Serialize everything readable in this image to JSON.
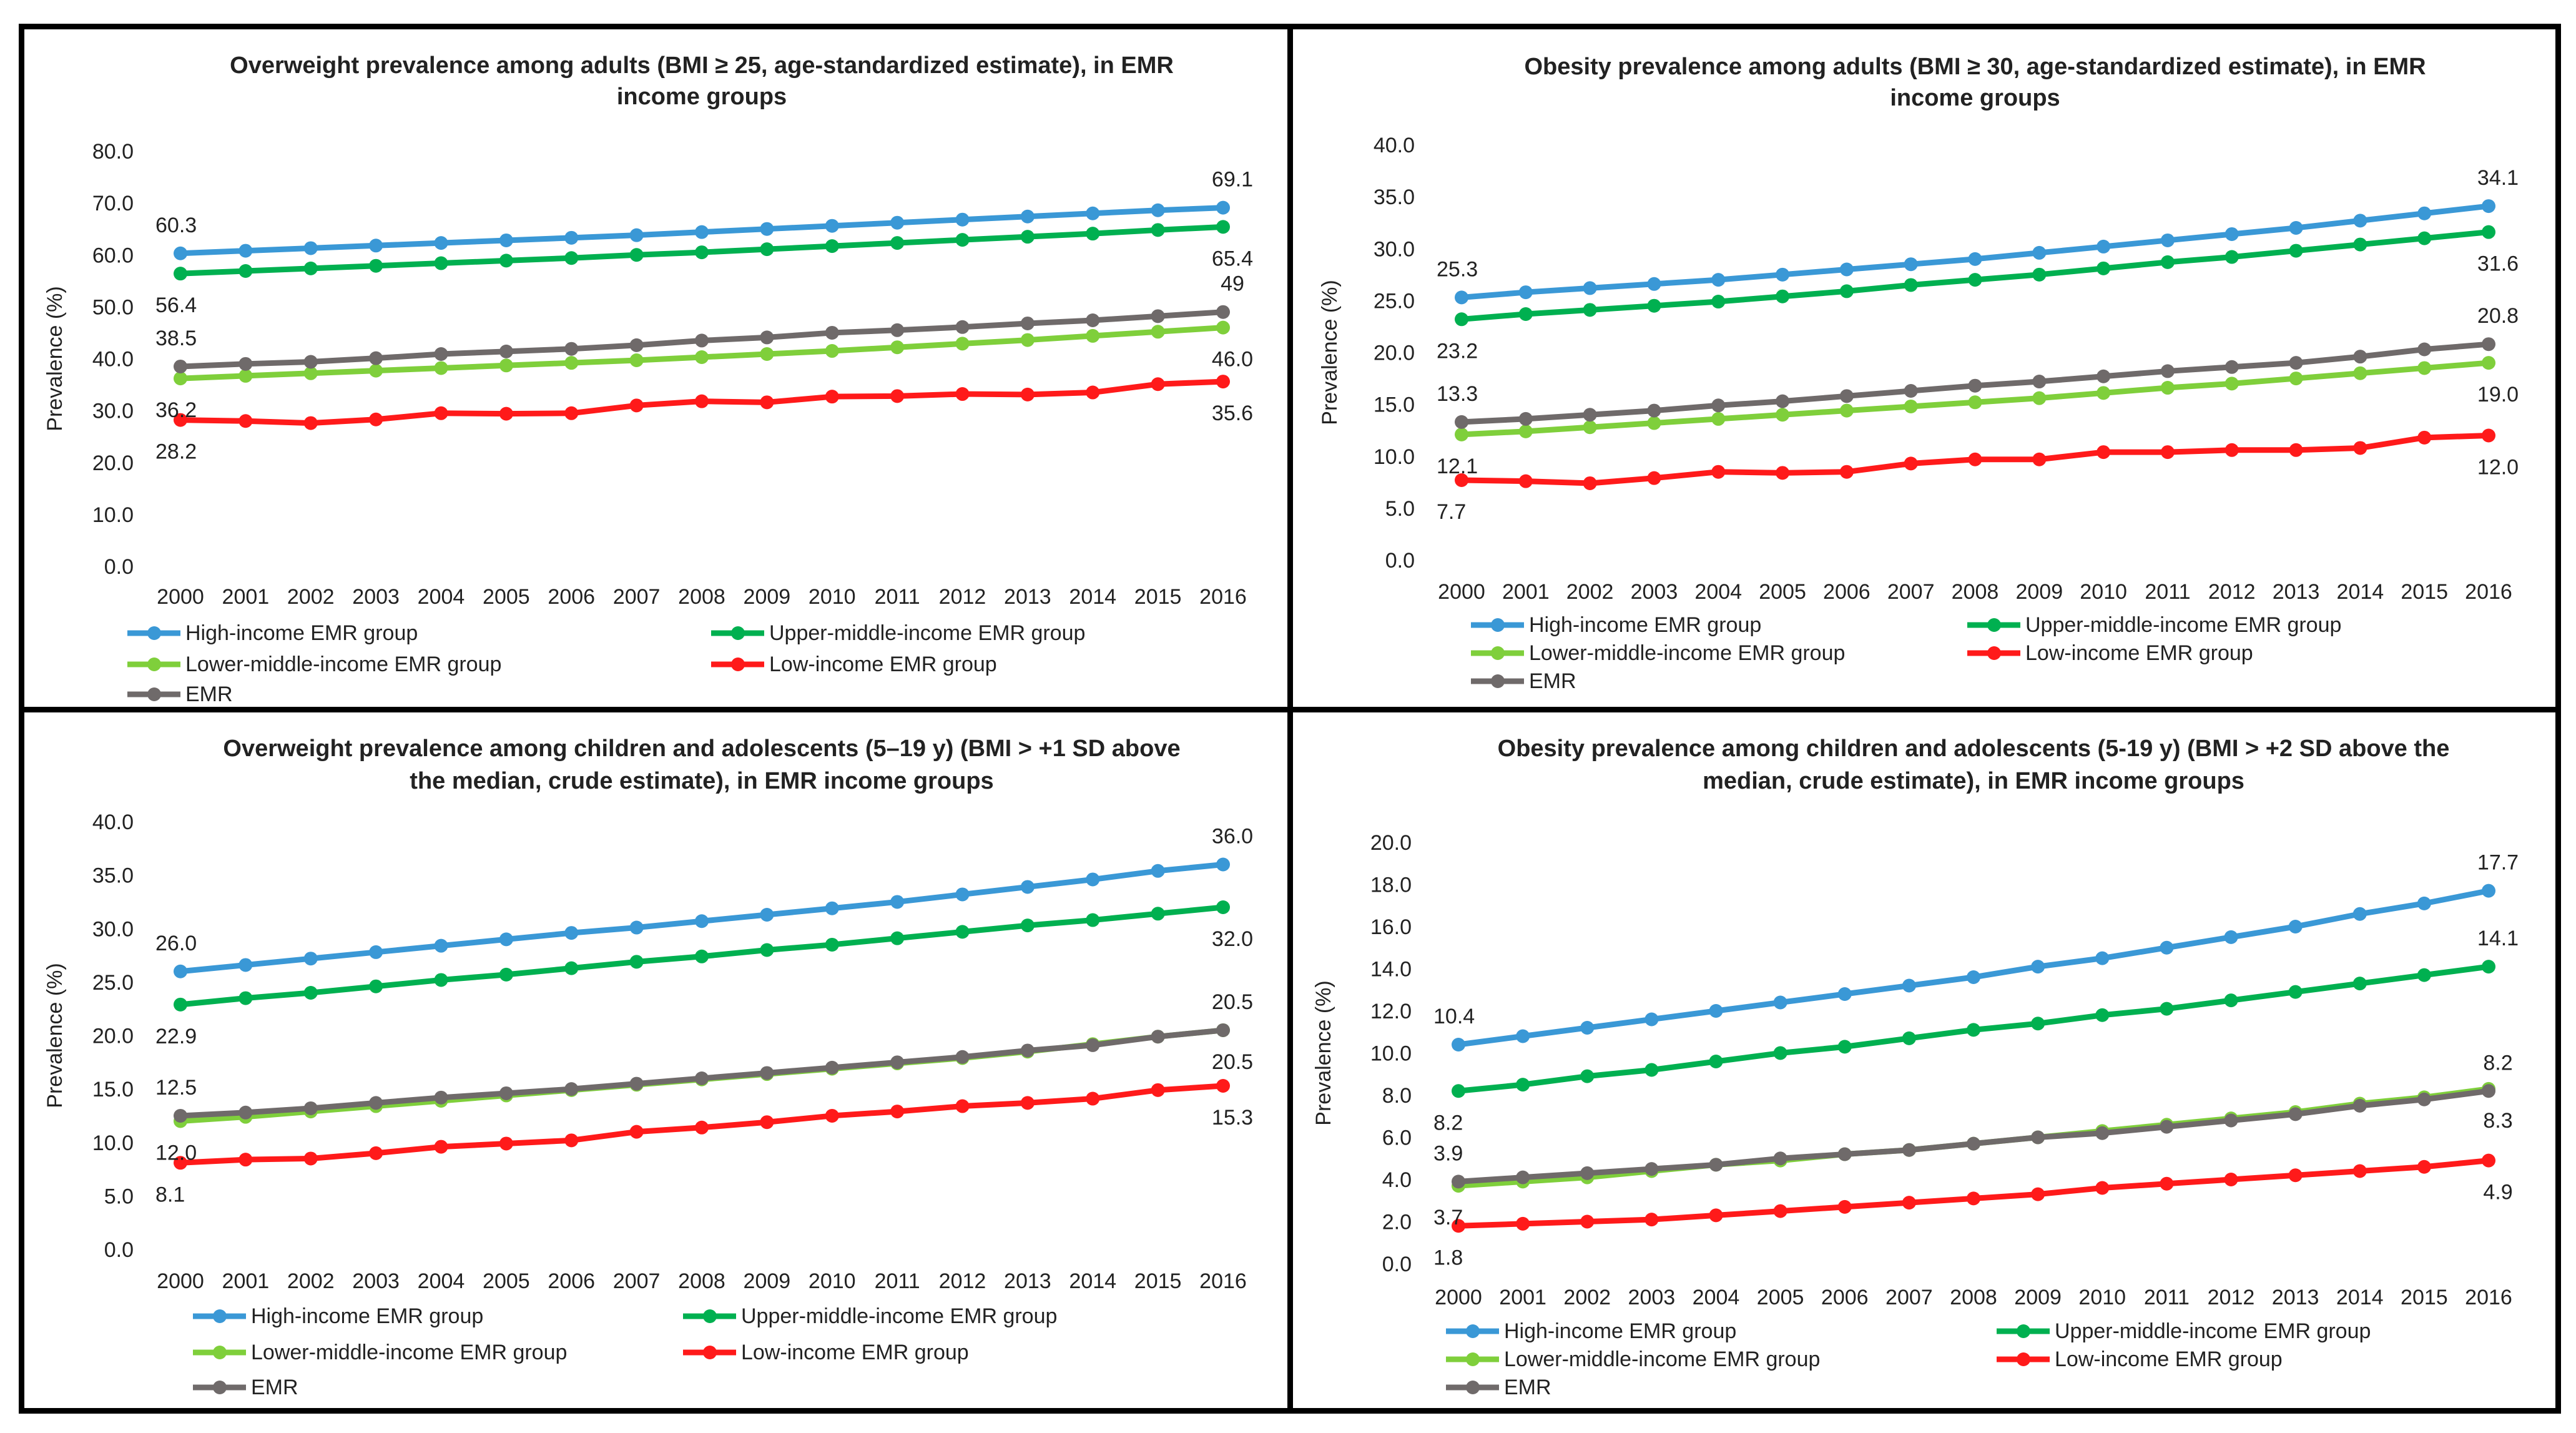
{
  "chart_data": [
    {
      "type": "line",
      "title_lines": [
        "Overweight prevalence among adults (BMI ≥ 25, age-standardized estimate), in EMR",
        "income groups"
      ],
      "ylabel": "Prevalence (%)",
      "ylim": [
        0,
        80
      ],
      "ytick_labels": [
        "0.0",
        "10.0",
        "20.0",
        "30.0",
        "40.0",
        "50.0",
        "60.0",
        "70.0",
        "80.0"
      ],
      "categories": [
        "2000",
        "2001",
        "2002",
        "2003",
        "2004",
        "2005",
        "2006",
        "2007",
        "2008",
        "2009",
        "2010",
        "2011",
        "2012",
        "2013",
        "2014",
        "2015",
        "2016"
      ],
      "series": [
        {
          "name": "High-income EMR group",
          "color": "#3a98d6",
          "values": [
            60.3,
            60.8,
            61.3,
            61.8,
            62.3,
            62.8,
            63.3,
            63.8,
            64.4,
            65.0,
            65.6,
            66.2,
            66.8,
            67.4,
            68.0,
            68.6,
            69.1
          ]
        },
        {
          "name": "Upper-middle-income EMR group",
          "color": "#00b050",
          "values": [
            56.4,
            56.9,
            57.4,
            57.9,
            58.4,
            58.9,
            59.4,
            60.0,
            60.5,
            61.1,
            61.7,
            62.3,
            62.9,
            63.5,
            64.1,
            64.8,
            65.4
          ]
        },
        {
          "name": "Lower-middle-income EMR group",
          "color": "#7fcf3b",
          "values": [
            36.2,
            36.7,
            37.2,
            37.7,
            38.2,
            38.7,
            39.2,
            39.7,
            40.3,
            40.9,
            41.5,
            42.2,
            42.9,
            43.6,
            44.4,
            45.2,
            46.0
          ]
        },
        {
          "name": "Low-income EMR group",
          "color": "#ff1a1a",
          "values": [
            28.2,
            28.0,
            27.6,
            28.3,
            29.5,
            29.4,
            29.5,
            31.0,
            31.8,
            31.6,
            32.7,
            32.8,
            33.2,
            33.1,
            33.5,
            35.1,
            35.6
          ]
        },
        {
          "name": "EMR",
          "color": "#6f6a6a",
          "values": [
            38.5,
            39.0,
            39.4,
            40.1,
            40.9,
            41.4,
            41.9,
            42.6,
            43.5,
            44.1,
            45.0,
            45.5,
            46.1,
            46.8,
            47.4,
            48.2,
            49.0
          ]
        }
      ],
      "data_labels": [
        {
          "text": "60.3",
          "series": 0,
          "index": 0,
          "pos": "above"
        },
        {
          "text": "69.1",
          "series": 0,
          "index": 16,
          "pos": "above"
        },
        {
          "text": "56.4",
          "series": 1,
          "index": 0,
          "pos": "below"
        },
        {
          "text": "65.4",
          "series": 1,
          "index": 16,
          "pos": "below"
        },
        {
          "text": "38.5",
          "series": 4,
          "index": 0,
          "pos": "above"
        },
        {
          "text": "49",
          "series": 4,
          "index": 16,
          "pos": "above"
        },
        {
          "text": "36.2",
          "series": 2,
          "index": 0,
          "pos": "below"
        },
        {
          "text": "46.0",
          "series": 2,
          "index": 16,
          "pos": "below"
        },
        {
          "text": "28.2",
          "series": 3,
          "index": 0,
          "pos": "below"
        },
        {
          "text": "35.6",
          "series": 3,
          "index": 16,
          "pos": "below"
        }
      ]
    },
    {
      "type": "line",
      "title_lines": [
        "Obesity prevalence among adults (BMI ≥ 30, age-standardized estimate), in EMR",
        "income groups"
      ],
      "ylabel": "Prevalence (%)",
      "ylim": [
        0,
        40
      ],
      "ytick_labels": [
        "0.0",
        "5.0",
        "10.0",
        "15.0",
        "20.0",
        "25.0",
        "30.0",
        "35.0",
        "40.0"
      ],
      "categories": [
        "2000",
        "2001",
        "2002",
        "2003",
        "2004",
        "2005",
        "2006",
        "2007",
        "2008",
        "2009",
        "2010",
        "2011",
        "2012",
        "2013",
        "2014",
        "2015",
        "2016"
      ],
      "series": [
        {
          "name": "High-income EMR group",
          "color": "#3a98d6",
          "values": [
            25.3,
            25.8,
            26.2,
            26.6,
            27.0,
            27.5,
            28.0,
            28.5,
            29.0,
            29.6,
            30.2,
            30.8,
            31.4,
            32.0,
            32.7,
            33.4,
            34.1
          ]
        },
        {
          "name": "Upper-middle-income EMR group",
          "color": "#00b050",
          "values": [
            23.2,
            23.7,
            24.1,
            24.5,
            24.9,
            25.4,
            25.9,
            26.5,
            27.0,
            27.5,
            28.1,
            28.7,
            29.2,
            29.8,
            30.4,
            31.0,
            31.6
          ]
        },
        {
          "name": "Lower-middle-income EMR group",
          "color": "#7fcf3b",
          "values": [
            12.1,
            12.4,
            12.8,
            13.2,
            13.6,
            14.0,
            14.4,
            14.8,
            15.2,
            15.6,
            16.1,
            16.6,
            17.0,
            17.5,
            18.0,
            18.5,
            19.0
          ]
        },
        {
          "name": "Low-income EMR group",
          "color": "#ff1a1a",
          "values": [
            7.7,
            7.6,
            7.4,
            7.9,
            8.5,
            8.4,
            8.5,
            9.3,
            9.7,
            9.7,
            10.4,
            10.4,
            10.6,
            10.6,
            10.8,
            11.8,
            12.0
          ]
        },
        {
          "name": "EMR",
          "color": "#6f6a6a",
          "values": [
            13.3,
            13.6,
            14.0,
            14.4,
            14.9,
            15.3,
            15.8,
            16.3,
            16.8,
            17.2,
            17.7,
            18.2,
            18.6,
            19.0,
            19.6,
            20.3,
            20.8
          ]
        }
      ],
      "data_labels": [
        {
          "text": "25.3",
          "series": 0,
          "index": 0,
          "pos": "above"
        },
        {
          "text": "34.1",
          "series": 0,
          "index": 16,
          "pos": "above"
        },
        {
          "text": "23.2",
          "series": 1,
          "index": 0,
          "pos": "below"
        },
        {
          "text": "31.6",
          "series": 1,
          "index": 16,
          "pos": "below"
        },
        {
          "text": "13.3",
          "series": 4,
          "index": 0,
          "pos": "above"
        },
        {
          "text": "20.8",
          "series": 4,
          "index": 16,
          "pos": "above"
        },
        {
          "text": "12.1",
          "series": 2,
          "index": 0,
          "pos": "below"
        },
        {
          "text": "19.0",
          "series": 2,
          "index": 16,
          "pos": "below"
        },
        {
          "text": "7.7",
          "series": 3,
          "index": 0,
          "pos": "below"
        },
        {
          "text": "12.0",
          "series": 3,
          "index": 16,
          "pos": "below"
        }
      ]
    },
    {
      "type": "line",
      "title_lines": [
        "Overweight prevalence among children and adolescents (5–19 y) (BMI > +1 SD above",
        "the median, crude estimate), in EMR income groups"
      ],
      "ylabel": "Prevalence (%)",
      "ylim": [
        0,
        40
      ],
      "ytick_labels": [
        "0.0",
        "5.0",
        "10.0",
        "15.0",
        "20.0",
        "25.0",
        "30.0",
        "35.0",
        "40.0"
      ],
      "categories": [
        "2000",
        "2001",
        "2002",
        "2003",
        "2004",
        "2005",
        "2006",
        "2007",
        "2008",
        "2009",
        "2010",
        "2011",
        "2012",
        "2013",
        "2014",
        "2015",
        "2016"
      ],
      "series": [
        {
          "name": "High-income EMR group",
          "color": "#3a98d6",
          "values": [
            26.0,
            26.6,
            27.2,
            27.8,
            28.4,
            29.0,
            29.6,
            30.1,
            30.7,
            31.3,
            31.9,
            32.5,
            33.2,
            33.9,
            34.6,
            35.4,
            36.0
          ]
        },
        {
          "name": "Upper-middle-income EMR group",
          "color": "#00b050",
          "values": [
            22.9,
            23.5,
            24.0,
            24.6,
            25.2,
            25.7,
            26.3,
            26.9,
            27.4,
            28.0,
            28.5,
            29.1,
            29.7,
            30.3,
            30.8,
            31.4,
            32.0
          ]
        },
        {
          "name": "Lower-middle-income EMR group",
          "color": "#7fcf3b",
          "values": [
            12.0,
            12.4,
            12.9,
            13.4,
            13.9,
            14.4,
            14.9,
            15.4,
            15.9,
            16.4,
            16.9,
            17.4,
            17.9,
            18.5,
            19.2,
            19.9,
            20.5
          ]
        },
        {
          "name": "Low-income EMR group",
          "color": "#ff1a1a",
          "values": [
            8.1,
            8.4,
            8.5,
            9.0,
            9.6,
            9.9,
            10.2,
            11.0,
            11.4,
            11.9,
            12.5,
            12.9,
            13.4,
            13.7,
            14.1,
            14.9,
            15.3
          ]
        },
        {
          "name": "EMR",
          "color": "#6f6a6a",
          "values": [
            12.5,
            12.8,
            13.2,
            13.7,
            14.2,
            14.6,
            15.0,
            15.5,
            16.0,
            16.5,
            17.0,
            17.5,
            18.0,
            18.6,
            19.1,
            19.9,
            20.5
          ]
        }
      ],
      "data_labels": [
        {
          "text": "26.0",
          "series": 0,
          "index": 0,
          "pos": "above"
        },
        {
          "text": "36.0",
          "series": 0,
          "index": 16,
          "pos": "above"
        },
        {
          "text": "22.9",
          "series": 1,
          "index": 0,
          "pos": "below"
        },
        {
          "text": "32.0",
          "series": 1,
          "index": 16,
          "pos": "below"
        },
        {
          "text": "12.5",
          "series": 4,
          "index": 0,
          "pos": "above"
        },
        {
          "text": "20.5",
          "series": 4,
          "index": 16,
          "pos": "above"
        },
        {
          "text": "12.0",
          "series": 2,
          "index": 0,
          "pos": "below"
        },
        {
          "text": "20.5",
          "series": 2,
          "index": 16,
          "pos": "below"
        },
        {
          "text": "8.1",
          "series": 3,
          "index": 0,
          "pos": "below"
        },
        {
          "text": "15.3",
          "series": 3,
          "index": 16,
          "pos": "below"
        }
      ]
    },
    {
      "type": "line",
      "title_lines": [
        "Obesity prevalence among children and adolescents (5-19 y) (BMI > +2 SD above the",
        "median, crude estimate), in EMR income groups"
      ],
      "ylabel": "Prevalence (%)",
      "ylim": [
        0,
        20
      ],
      "ytick_labels": [
        "0.0",
        "2.0",
        "4.0",
        "6.0",
        "8.0",
        "10.0",
        "12.0",
        "14.0",
        "16.0",
        "18.0",
        "20.0"
      ],
      "categories": [
        "2000",
        "2001",
        "2002",
        "2003",
        "2004",
        "2005",
        "2006",
        "2007",
        "2008",
        "2009",
        "2010",
        "2011",
        "2012",
        "2013",
        "2014",
        "2015",
        "2016"
      ],
      "series": [
        {
          "name": "High-income EMR group",
          "color": "#3a98d6",
          "values": [
            10.4,
            10.8,
            11.2,
            11.6,
            12.0,
            12.4,
            12.8,
            13.2,
            13.6,
            14.1,
            14.5,
            15.0,
            15.5,
            16.0,
            16.6,
            17.1,
            17.7
          ]
        },
        {
          "name": "Upper-middle-income EMR group",
          "color": "#00b050",
          "values": [
            8.2,
            8.5,
            8.9,
            9.2,
            9.6,
            10.0,
            10.3,
            10.7,
            11.1,
            11.4,
            11.8,
            12.1,
            12.5,
            12.9,
            13.3,
            13.7,
            14.1
          ]
        },
        {
          "name": "Lower-middle-income EMR group",
          "color": "#7fcf3b",
          "values": [
            3.7,
            3.9,
            4.1,
            4.4,
            4.7,
            4.9,
            5.2,
            5.4,
            5.7,
            6.0,
            6.3,
            6.6,
            6.9,
            7.2,
            7.6,
            7.9,
            8.3
          ]
        },
        {
          "name": "Low-income EMR group",
          "color": "#ff1a1a",
          "values": [
            1.8,
            1.9,
            2.0,
            2.1,
            2.3,
            2.5,
            2.7,
            2.9,
            3.1,
            3.3,
            3.6,
            3.8,
            4.0,
            4.2,
            4.4,
            4.6,
            4.9
          ]
        },
        {
          "name": "EMR",
          "color": "#6f6a6a",
          "values": [
            3.9,
            4.1,
            4.3,
            4.5,
            4.7,
            5.0,
            5.2,
            5.4,
            5.7,
            6.0,
            6.2,
            6.5,
            6.8,
            7.1,
            7.5,
            7.8,
            8.2
          ]
        }
      ],
      "data_labels": [
        {
          "text": "10.4",
          "series": 0,
          "index": 0,
          "pos": "above"
        },
        {
          "text": "17.7",
          "series": 0,
          "index": 16,
          "pos": "above"
        },
        {
          "text": "8.2",
          "series": 1,
          "index": 0,
          "pos": "below"
        },
        {
          "text": "14.1",
          "series": 1,
          "index": 16,
          "pos": "above"
        },
        {
          "text": "3.9",
          "series": 4,
          "index": 0,
          "pos": "above"
        },
        {
          "text": "8.2",
          "series": 4,
          "index": 16,
          "pos": "above"
        },
        {
          "text": "3.7",
          "series": 2,
          "index": 0,
          "pos": "below"
        },
        {
          "text": "8.3",
          "series": 2,
          "index": 16,
          "pos": "below"
        },
        {
          "text": "1.8",
          "series": 3,
          "index": 0,
          "pos": "below"
        },
        {
          "text": "4.9",
          "series": 3,
          "index": 16,
          "pos": "below"
        }
      ]
    }
  ]
}
